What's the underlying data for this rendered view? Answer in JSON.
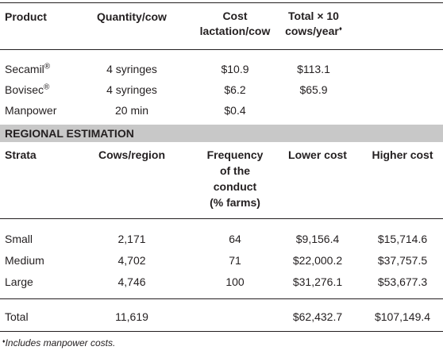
{
  "header": {
    "product": "Product",
    "quantity": "Quantity/cow",
    "cost_l1": "Cost",
    "cost_l2": "lactation/cow",
    "total_l1": "Total × 10",
    "total_l2": "cows/year",
    "total_mark": "♦"
  },
  "products": [
    {
      "name": "Secamil",
      "mark": "®",
      "quantity": "4 syringes",
      "cost": "$10.9",
      "total": "$113.1"
    },
    {
      "name": "Bovisec",
      "mark": "®",
      "quantity": "4 syringes",
      "cost": "$6.2",
      "total": "$65.9"
    },
    {
      "name": "Manpower",
      "mark": "",
      "quantity": "20 min",
      "cost": "$0.4",
      "total": ""
    }
  ],
  "section_title": "REGIONAL ESTIMATION",
  "header2": {
    "strata": "Strata",
    "cows": "Cows/region",
    "freq_l1": "Frequency",
    "freq_l2": "of the",
    "freq_l3": "conduct",
    "freq_l4": "(% farms)",
    "lower": "Lower cost",
    "higher": "Higher cost"
  },
  "strata": [
    {
      "name": "Small",
      "cows": "2,171",
      "freq": "64",
      "lower": "$9,156.4",
      "higher": "$15,714.6"
    },
    {
      "name": "Medium",
      "cows": "4,702",
      "freq": "71",
      "lower": "$22,000.2",
      "higher": "$37,757.5"
    },
    {
      "name": "Large",
      "cows": "4,746",
      "freq": "100",
      "lower": "$31,276.1",
      "higher": "$53,677.3"
    }
  ],
  "total_row": {
    "name": "Total",
    "cows": "11,619",
    "lower": "$62,432.7",
    "higher": "$107,149.4"
  },
  "footnote": {
    "mark": "♦",
    "text": "Includes manpower costs."
  }
}
